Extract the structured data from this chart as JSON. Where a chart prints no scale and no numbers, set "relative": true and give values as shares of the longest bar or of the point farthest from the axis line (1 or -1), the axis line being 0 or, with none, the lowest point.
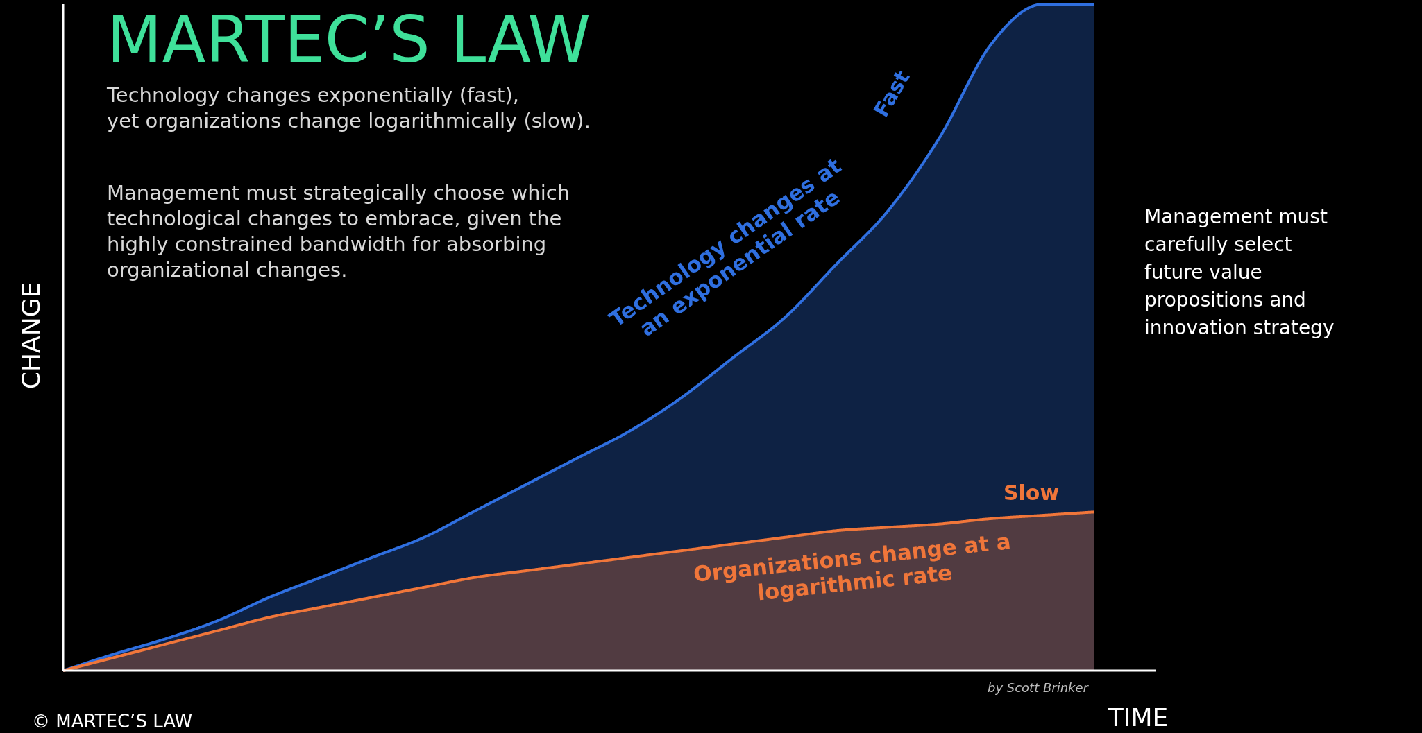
{
  "chart_data": {
    "type": "area",
    "relative": true,
    "title": "MARTEC’S LAW",
    "subtitle": "Technology changes exponentially (fast),\nyet organizations change logarithmically (slow).",
    "xlabel": "TIME",
    "ylabel": "CHANGE",
    "categories": [
      null,
      null,
      null,
      null,
      null,
      null,
      null,
      null,
      null,
      null,
      null,
      null,
      null,
      null,
      null,
      null,
      null,
      null,
      null,
      null,
      null
    ],
    "series": [
      {
        "name": "Fast",
        "color": "#2f6fe0",
        "values": [
          0,
          0.025,
          0.048,
          0.075,
          0.11,
          0.14,
          0.17,
          0.2,
          0.24,
          0.28,
          0.32,
          0.36,
          0.41,
          0.47,
          0.53,
          0.61,
          0.69,
          0.8,
          0.94,
          1,
          1
        ]
      },
      {
        "name": "Slow",
        "color": "#f0763a",
        "values": [
          0,
          0.02,
          0.04,
          0.06,
          0.08,
          0.095,
          0.11,
          0.125,
          0.14,
          0.15,
          0.16,
          0.17,
          0.18,
          0.19,
          0.2,
          0.21,
          0.215,
          0.22,
          0.228,
          0.233,
          0.238
        ]
      }
    ],
    "annotations": [
      "Management must strategically choose which\ntechnological changes to embrace, given the\nhighly constrained bandwidth for absorbing\norganizational changes.",
      "Technology changes at\nan exponential rate",
      "Organizations change at a\nlogarithmic rate",
      "by Scott Brinker",
      "© MARTEC’S LAW",
      "Management must\ncarefully select\nfuture value\npropositions and\ninnovation strategy"
    ],
    "line_style": "solid"
  }
}
